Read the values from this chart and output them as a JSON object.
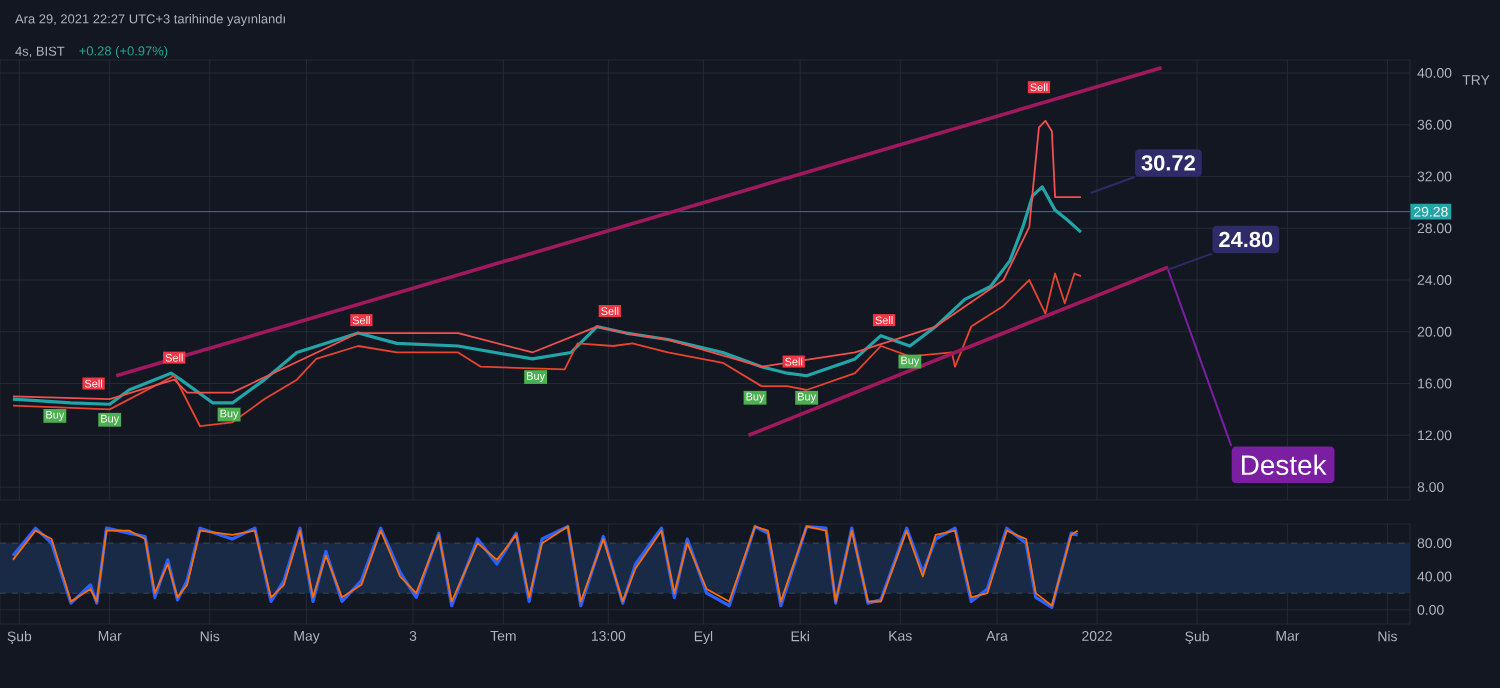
{
  "chart_data": [
    {
      "type": "line",
      "title": "4s, BIST",
      "subtitle": "+0.28 (+0.97%)",
      "ylabel": "TRY",
      "xlim": [
        "2021-01-26",
        "2022-04-08"
      ],
      "ylim": [
        7,
        41
      ],
      "xticks": [
        {
          "value": "2021-02",
          "label": null
        },
        {
          "value": "2021-03",
          "label": null
        },
        {
          "value": "2021-04",
          "label": null
        },
        {
          "value": "2021-05",
          "label": null
        },
        {
          "value": "2021-06-03",
          "label": null
        },
        {
          "value": "2021-07",
          "label": null
        },
        {
          "value": "2021-08-02T13:00",
          "label": null
        },
        {
          "value": "2021-09",
          "label": null
        },
        {
          "value": "2021-10",
          "label": null
        },
        {
          "value": "2021-11",
          "label": null
        },
        {
          "value": "2021-12",
          "label": null
        },
        {
          "value": "2022-01",
          "label": null
        },
        {
          "value": "2022-02",
          "label": null
        },
        {
          "value": "2022-03",
          "label": null
        },
        {
          "value": "2022-04",
          "label": null
        }
      ],
      "yticks": [
        {
          "value": 8,
          "label": "8.00"
        },
        {
          "value": 12,
          "label": "12.00"
        },
        {
          "value": 16,
          "label": "16.00"
        },
        {
          "value": 20,
          "label": "20.00"
        },
        {
          "value": 24,
          "label": "24.00"
        },
        {
          "value": 28,
          "label": "28.00"
        },
        {
          "value": 32,
          "label": "32.00"
        },
        {
          "value": 36,
          "label": "36.00"
        },
        {
          "value": 40,
          "label": "40.00"
        }
      ],
      "tick_labels": "y",
      "grid": true,
      "marker": "none",
      "ref_lines": [
        {
          "axis": "y",
          "value": 29.28,
          "label": "29.28",
          "color": "#22a5a8"
        }
      ],
      "series": [
        {
          "color": "#22a5a8",
          "x": [
            "2021-01-30",
            "2021-02-17",
            "2021-03-01",
            "2021-03-07",
            "2021-03-20",
            "2021-03-23",
            "2021-04-02",
            "2021-04-08",
            "2021-04-18",
            "2021-04-28",
            "2021-05-17",
            "2021-05-29",
            "2021-06-17",
            "2021-07-10",
            "2021-07-22",
            "2021-07-30",
            "2021-08-08",
            "2021-08-21",
            "2021-09-07",
            "2021-09-19",
            "2021-09-27",
            "2021-10-03",
            "2021-10-18",
            "2021-10-26",
            "2021-11-04",
            "2021-11-12",
            "2021-11-21",
            "2021-11-29",
            "2021-12-05",
            "2021-12-09",
            "2021-12-12",
            "2021-12-15",
            "2021-12-19",
            "2021-12-23",
            "2021-12-27"
          ],
          "values": [
            14.8,
            14.5,
            14.4,
            15.5,
            16.8,
            16.3,
            14.5,
            14.5,
            16.3,
            18.4,
            19.9,
            19.1,
            18.9,
            17.9,
            18.4,
            20.4,
            19.9,
            19.4,
            18.4,
            17.3,
            16.8,
            16.6,
            17.9,
            19.7,
            18.9,
            20.4,
            22.5,
            23.5,
            25.5,
            28.1,
            30.5,
            31.2,
            29.4,
            28.6,
            27.7
          ]
        },
        {
          "color": "#e8452f",
          "x": [
            "2021-01-30",
            "2021-03-01",
            "2021-03-21",
            "2021-03-29",
            "2021-04-08",
            "2021-04-18",
            "2021-04-28",
            "2021-05-04",
            "2021-05-17",
            "2021-05-29",
            "2021-06-17",
            "2021-06-24",
            "2021-07-20",
            "2021-07-24",
            "2021-08-04",
            "2021-08-10",
            "2021-08-21",
            "2021-09-07",
            "2021-09-19",
            "2021-09-27",
            "2021-10-03",
            "2021-10-18",
            "2021-10-26",
            "2021-11-04",
            "2021-11-17",
            "2021-11-18",
            "2021-11-23",
            "2021-12-03",
            "2021-12-11",
            "2021-12-16",
            "2021-12-19",
            "2021-12-22",
            "2021-12-25",
            "2021-12-27"
          ],
          "values": [
            14.3,
            14.0,
            16.6,
            12.7,
            13.0,
            14.8,
            16.3,
            17.9,
            18.9,
            18.4,
            18.4,
            17.3,
            17.1,
            19.1,
            18.9,
            19.1,
            18.4,
            17.6,
            15.8,
            15.8,
            15.5,
            16.8,
            18.9,
            18.1,
            18.4,
            17.3,
            20.4,
            22.0,
            24.0,
            21.4,
            24.5,
            22.2,
            24.5,
            24.3
          ]
        },
        {
          "color": "#f05050",
          "x": [
            "2021-01-30",
            "2021-03-01",
            "2021-03-21",
            "2021-03-25",
            "2021-04-08",
            "2021-05-17",
            "2021-06-17",
            "2021-07-10",
            "2021-07-30",
            "2021-08-08",
            "2021-08-21",
            "2021-09-19",
            "2021-10-18",
            "2021-11-12",
            "2021-12-03",
            "2021-12-11",
            "2021-12-14",
            "2021-12-16",
            "2021-12-18",
            "2021-12-19",
            "2021-12-27"
          ],
          "values": [
            15.0,
            14.8,
            16.3,
            15.3,
            15.3,
            19.9,
            19.9,
            18.4,
            20.4,
            19.9,
            19.4,
            17.3,
            18.4,
            20.4,
            24.0,
            28.1,
            35.8,
            36.3,
            35.5,
            30.4,
            30.4
          ]
        },
        {
          "color": "#a0195e",
          "x": [
            "2021-03-03",
            "2022-01-21"
          ],
          "values": [
            16.6,
            40.4
          ]
        },
        {
          "color": "#a0195e",
          "x": [
            "2021-09-15",
            "2022-01-23"
          ],
          "values": [
            12.0,
            25.0
          ]
        }
      ],
      "annotations": [
        "Ara 29, 2021 22:27 UTC+3 tarihinde yayınlandı",
        {
          "text": "Sell",
          "x": "2021-02-24",
          "y": 16.0
        },
        {
          "text": "Sell",
          "x": "2021-03-21",
          "y": 18.0
        },
        {
          "text": "Sell",
          "x": "2021-05-18",
          "y": 20.9
        },
        {
          "text": "Sell",
          "x": "2021-08-03",
          "y": 21.6
        },
        {
          "text": "Sell",
          "x": "2021-09-29",
          "y": 17.7
        },
        {
          "text": "Sell",
          "x": "2021-10-27",
          "y": 20.9
        },
        {
          "text": "Sell",
          "x": "2021-12-14",
          "y": 38.9
        },
        {
          "text": "Buy",
          "x": "2021-02-12",
          "y": 13.5
        },
        {
          "text": "Buy",
          "x": "2021-03-01",
          "y": 13.2
        },
        {
          "text": "Buy",
          "x": "2021-04-07",
          "y": 13.6
        },
        {
          "text": "Buy",
          "x": "2021-07-11",
          "y": 16.5
        },
        {
          "text": "Buy",
          "x": "2021-09-17",
          "y": 14.9
        },
        {
          "text": "Buy",
          "x": "2021-10-03",
          "y": 14.9
        },
        {
          "text": "Buy",
          "x": "2021-11-04",
          "y": 17.7
        },
        {
          "text": "30.72",
          "x": "2021-12-30",
          "y": 30.72
        },
        {
          "text": "24.80",
          "x": "2022-01-23",
          "y": 24.8
        },
        {
          "text": "Destek",
          "x": "2022-01-23",
          "y": 24.8
        }
      ]
    },
    {
      "type": "line",
      "xlim": [
        "2021-01-26",
        "2022-04-08"
      ],
      "ylim": [
        -17,
        103
      ],
      "xticks": [
        {
          "value": "2021-02",
          "label": "Şub"
        },
        {
          "value": "2021-03",
          "label": "Mar"
        },
        {
          "value": "2021-04",
          "label": "Nis"
        },
        {
          "value": "2021-05",
          "label": "May"
        },
        {
          "value": "2021-06-03",
          "label": "3"
        },
        {
          "value": "2021-07",
          "label": "Tem"
        },
        {
          "value": "2021-08-02T13:00",
          "label": "13:00"
        },
        {
          "value": "2021-09",
          "label": "Eyl"
        },
        {
          "value": "2021-10",
          "label": "Eki"
        },
        {
          "value": "2021-11",
          "label": "Kas"
        },
        {
          "value": "2021-12",
          "label": "Ara"
        },
        {
          "value": "2022-01",
          "label": "2022"
        },
        {
          "value": "2022-02",
          "label": "Şub"
        },
        {
          "value": "2022-03",
          "label": "Mar"
        },
        {
          "value": "2022-04",
          "label": "Nis"
        }
      ],
      "yticks": [
        {
          "value": 0,
          "label": "0.00"
        },
        {
          "value": 40,
          "label": "40.00"
        },
        {
          "value": 80,
          "label": "80.00"
        }
      ],
      "grid": true,
      "marker": "none",
      "bands": [
        {
          "axis": "y",
          "from": 20,
          "to": 80,
          "color": "#182a45"
        }
      ],
      "ref_lines": [
        {
          "axis": "y",
          "value": 80,
          "color": "#4a5060",
          "line_style": "dashed"
        },
        {
          "axis": "y",
          "value": 20,
          "color": "#4a5060",
          "line_style": "dashed"
        }
      ],
      "x": [
        "2021-01-30",
        "2021-02-06",
        "2021-02-11",
        "2021-02-17",
        "2021-02-23",
        "2021-02-25",
        "2021-02-28",
        "2021-03-07",
        "2021-03-12",
        "2021-03-15",
        "2021-03-19",
        "2021-03-22",
        "2021-03-25",
        "2021-03-29",
        "2021-04-08",
        "2021-04-15",
        "2021-04-20",
        "2021-04-24",
        "2021-04-29",
        "2021-05-03",
        "2021-05-07",
        "2021-05-12",
        "2021-05-18",
        "2021-05-24",
        "2021-05-30",
        "2021-06-04",
        "2021-06-11",
        "2021-06-15",
        "2021-06-23",
        "2021-06-29",
        "2021-07-05",
        "2021-07-09",
        "2021-07-13",
        "2021-07-21",
        "2021-07-25",
        "2021-08-01",
        "2021-08-07",
        "2021-08-11",
        "2021-08-19",
        "2021-08-23",
        "2021-08-27",
        "2021-09-02",
        "2021-09-09",
        "2021-09-17",
        "2021-09-21",
        "2021-09-25",
        "2021-10-03",
        "2021-10-09",
        "2021-10-12",
        "2021-10-17",
        "2021-10-22",
        "2021-10-26",
        "2021-11-03",
        "2021-11-08",
        "2021-11-12",
        "2021-11-18",
        "2021-11-23",
        "2021-11-28",
        "2021-12-04",
        "2021-12-10",
        "2021-12-13",
        "2021-12-18",
        "2021-12-24",
        "2021-12-26"
      ],
      "series": [
        {
          "color": "#2962ff",
          "values": [
            65,
            98,
            80,
            8,
            30,
            8,
            98,
            92,
            88,
            15,
            60,
            12,
            35,
            98,
            85,
            98,
            10,
            35,
            98,
            10,
            70,
            10,
            35,
            98,
            45,
            15,
            92,
            5,
            85,
            55,
            92,
            10,
            85,
            100,
            5,
            88,
            8,
            55,
            98,
            15,
            85,
            20,
            5,
            100,
            92,
            5,
            100,
            98,
            8,
            98,
            8,
            12,
            98,
            45,
            85,
            98,
            10,
            25,
            98,
            80,
            15,
            3,
            92,
            90
          ]
        },
        {
          "color": "#ff6d00",
          "values": [
            60,
            95,
            85,
            10,
            25,
            10,
            95,
            95,
            85,
            20,
            55,
            15,
            30,
            95,
            90,
            95,
            15,
            30,
            95,
            15,
            65,
            15,
            30,
            95,
            40,
            20,
            90,
            10,
            80,
            60,
            90,
            15,
            80,
            100,
            10,
            85,
            10,
            50,
            95,
            20,
            80,
            25,
            10,
            100,
            95,
            10,
            100,
            95,
            10,
            95,
            10,
            10,
            95,
            40,
            90,
            95,
            15,
            20,
            95,
            85,
            20,
            5,
            90,
            95
          ]
        }
      ]
    }
  ]
}
